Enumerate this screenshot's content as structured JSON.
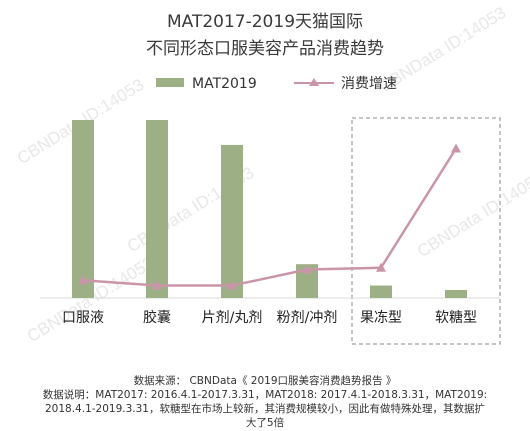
{
  "header": {
    "title_line1": "MAT2017-2019天猫国际",
    "title_line2": "不同形态口服美容产品消费趋势"
  },
  "watermark": {
    "text": "CBNData ID:14053"
  },
  "footer": {
    "source": "数据来源： CBNData《 2019口服美容消费趋势报告 》",
    "note_line1": "数据说明：MAT2017: 2016.4.1-2017.3.31，MAT2018: 2017.4.1-2018.3.31，MAT2019:",
    "note_line2": "2018.4.1-2019.3.31，软糖型在市场上较新，其消费规模较小，因此有做特殊处理，其数据扩",
    "note_line3": "大了5倍"
  },
  "colors": {
    "bar": "#9daf84",
    "line": "#c995a8",
    "dashed_box": "#8a8a8a",
    "axis": "#d9d9d9"
  },
  "chart_data": {
    "type": "bar",
    "categories": [
      "口服液",
      "胶囊",
      "片剂/丸剂",
      "粉剂/冲剂",
      "果冻型",
      "软糖型"
    ],
    "legend_position": "top",
    "grid": false,
    "y_axis_visible": false,
    "ylim": [
      0,
      100
    ],
    "highlight_categories": [
      "果冻型",
      "软糖型"
    ],
    "series": [
      {
        "name": "MAT2019",
        "type": "bar",
        "values": [
          100,
          100,
          86,
          19,
          7,
          4.5
        ]
      },
      {
        "name": "消费增速",
        "type": "line",
        "marker": "triangle",
        "values": [
          10,
          7,
          7,
          16,
          17,
          84
        ]
      }
    ]
  }
}
